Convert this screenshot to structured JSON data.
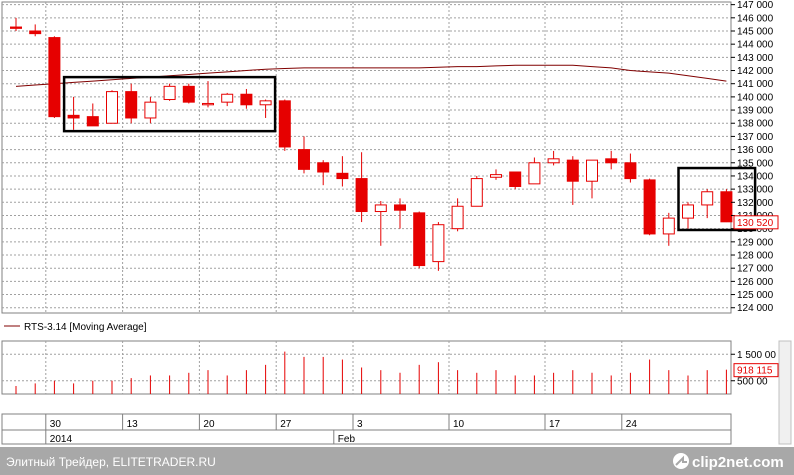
{
  "chart_data": {
    "type": "candlestick",
    "instrument": "RTS-3.14",
    "price_axis": {
      "ticks": [
        "147 000",
        "146 000",
        "145 000",
        "144 000",
        "143 000",
        "142 000",
        "141 000",
        "140 000",
        "139 000",
        "138 000",
        "137 000",
        "136 000",
        "135 000",
        "134 000",
        "133 000",
        "132 000",
        "131 000",
        "130 000",
        "129 000",
        "128 000",
        "127 000",
        "126 000",
        "125 000",
        "124 000"
      ],
      "tick_values": [
        147000,
        146000,
        145000,
        144000,
        143000,
        142000,
        141000,
        140000,
        139000,
        138000,
        137000,
        136000,
        135000,
        134000,
        133000,
        132000,
        131000,
        130000,
        129000,
        128000,
        127000,
        126000,
        125000,
        124000
      ],
      "min": 123600,
      "max": 147200,
      "last_price_label": "130 520",
      "last_price": 130520
    },
    "volume_axis": {
      "ticks": [
        "1 500 00",
        "500 00"
      ],
      "tick_values": [
        1500000,
        500000
      ],
      "min": 0,
      "max": 2000000,
      "last_volume_label": "918 115",
      "last_volume": 918115
    },
    "date_axis": {
      "day_labels": [
        "30",
        "13",
        "20",
        "27",
        "3",
        "10",
        "17",
        "24"
      ],
      "day_label_indices": [
        1,
        5,
        9,
        13,
        17,
        22,
        27,
        31
      ],
      "month_labels": [
        "2014",
        "Feb"
      ],
      "month_label_indices": [
        2,
        17
      ]
    },
    "candles": [
      {
        "o": 145300,
        "h": 146000,
        "l": 145000,
        "c": 145200
      },
      {
        "o": 145000,
        "h": 145500,
        "l": 144600,
        "c": 144800
      },
      {
        "o": 144500,
        "h": 144600,
        "l": 138400,
        "c": 138500
      },
      {
        "o": 138600,
        "h": 140000,
        "l": 137500,
        "c": 138400
      },
      {
        "o": 138500,
        "h": 139500,
        "l": 137800,
        "c": 137800
      },
      {
        "o": 138000,
        "h": 140500,
        "l": 138000,
        "c": 140400
      },
      {
        "o": 140400,
        "h": 141000,
        "l": 138000,
        "c": 138400
      },
      {
        "o": 138400,
        "h": 140000,
        "l": 138000,
        "c": 139600
      },
      {
        "o": 139800,
        "h": 141000,
        "l": 139700,
        "c": 140800
      },
      {
        "o": 140800,
        "h": 141000,
        "l": 139500,
        "c": 139600
      },
      {
        "o": 139400,
        "h": 141200,
        "l": 139200,
        "c": 139500
      },
      {
        "o": 139600,
        "h": 140300,
        "l": 139300,
        "c": 140200
      },
      {
        "o": 140200,
        "h": 140600,
        "l": 139100,
        "c": 139400
      },
      {
        "o": 139400,
        "h": 139800,
        "l": 138400,
        "c": 139700
      },
      {
        "o": 139700,
        "h": 139800,
        "l": 135900,
        "c": 136200
      },
      {
        "o": 136000,
        "h": 137000,
        "l": 134200,
        "c": 134500
      },
      {
        "o": 135000,
        "h": 135200,
        "l": 133300,
        "c": 134300
      },
      {
        "o": 134200,
        "h": 135500,
        "l": 133200,
        "c": 133800
      },
      {
        "o": 133800,
        "h": 135800,
        "l": 130500,
        "c": 131300
      },
      {
        "o": 131300,
        "h": 132100,
        "l": 128700,
        "c": 131800
      },
      {
        "o": 131800,
        "h": 132300,
        "l": 130000,
        "c": 131400
      },
      {
        "o": 131200,
        "h": 131300,
        "l": 127000,
        "c": 127200
      },
      {
        "o": 127500,
        "h": 130500,
        "l": 126800,
        "c": 130300
      },
      {
        "o": 130000,
        "h": 132300,
        "l": 129800,
        "c": 131700
      },
      {
        "o": 131700,
        "h": 134000,
        "l": 131700,
        "c": 133800
      },
      {
        "o": 133900,
        "h": 134500,
        "l": 133700,
        "c": 134100
      },
      {
        "o": 134300,
        "h": 134300,
        "l": 133000,
        "c": 133200
      },
      {
        "o": 133400,
        "h": 135400,
        "l": 133400,
        "c": 135000
      },
      {
        "o": 135000,
        "h": 135900,
        "l": 134800,
        "c": 135300
      },
      {
        "o": 135200,
        "h": 135500,
        "l": 131800,
        "c": 133600
      },
      {
        "o": 133600,
        "h": 135200,
        "l": 132300,
        "c": 135200
      },
      {
        "o": 135300,
        "h": 135900,
        "l": 134500,
        "c": 135000
      },
      {
        "o": 135000,
        "h": 135700,
        "l": 133500,
        "c": 133800
      },
      {
        "o": 133700,
        "h": 133800,
        "l": 129500,
        "c": 129600
      },
      {
        "o": 129600,
        "h": 131200,
        "l": 128700,
        "c": 130800
      },
      {
        "o": 130800,
        "h": 132000,
        "l": 130000,
        "c": 131800
      },
      {
        "o": 131800,
        "h": 133000,
        "l": 130800,
        "c": 132800
      },
      {
        "o": 132800,
        "h": 133000,
        "l": 130500,
        "c": 130520
      }
    ],
    "moving_average": [
      140800,
      140900,
      141000,
      141100,
      141200,
      141300,
      141400,
      141500,
      141600,
      141700,
      141800,
      141900,
      142000,
      142100,
      142150,
      142200,
      142200,
      142200,
      142200,
      142200,
      142200,
      142200,
      142250,
      142300,
      142300,
      142350,
      142400,
      142400,
      142400,
      142400,
      142300,
      142200,
      142000,
      141900,
      141800,
      141600,
      141400,
      141200
    ],
    "volumes": [
      300000,
      400000,
      500000,
      400000,
      500000,
      500000,
      600000,
      700000,
      700000,
      800000,
      900000,
      700000,
      900000,
      1100000,
      1600000,
      1400000,
      1400000,
      1300000,
      1000000,
      900000,
      800000,
      1100000,
      1200000,
      900000,
      800000,
      900000,
      700000,
      700000,
      800000,
      900000,
      800000,
      700000,
      800000,
      1300000,
      900000,
      700000,
      900000,
      918115
    ],
    "legend": "RTS-3.14 [Moving Average]",
    "colors": {
      "down": "#e60000",
      "up_body": "#ffffff",
      "up_border": "#e60000",
      "ma_line": "#800000",
      "grid": "#a0a0a0",
      "last_label_text": "#e60000",
      "box": "#000000"
    }
  },
  "highlight_boxes": [
    {
      "from_candle": 3,
      "to_candle": 13,
      "price_top": 141500,
      "price_bottom": 137400
    },
    {
      "from_candle": 35,
      "to_candle": 38,
      "price_top": 134600,
      "price_bottom": 129900
    }
  ],
  "footer": {
    "site_text": "Элитный Трейдер, ELITETRADER.RU",
    "logo_text": "clip2net.com",
    "bar_color": "#a8a8a8"
  }
}
